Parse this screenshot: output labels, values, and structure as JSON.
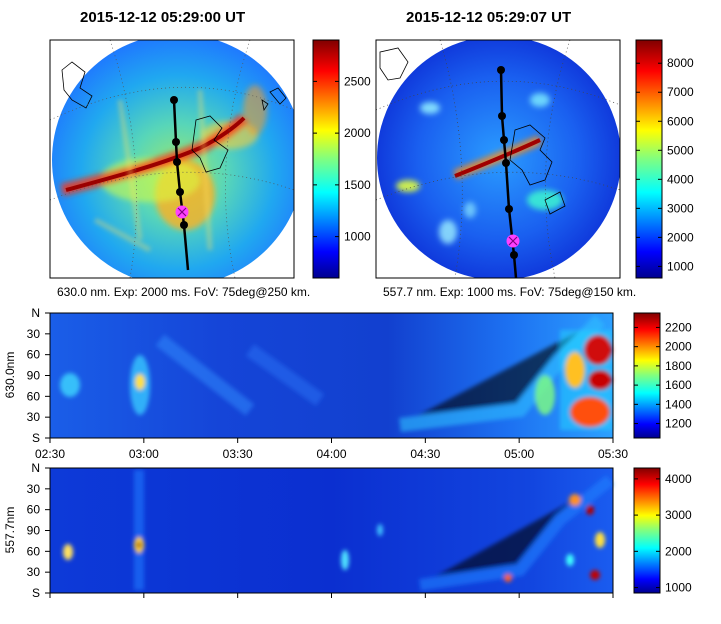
{
  "panels": {
    "left": {
      "title": "2015-12-12 05:29:00 UT",
      "caption": "630.0 nm. Exp: 2000 ms. FoV: 75deg@250 km.",
      "colorbar": {
        "ticks": [
          1000,
          1500,
          2000,
          2500
        ],
        "range": [
          600,
          2900
        ]
      }
    },
    "right": {
      "title": "2015-12-12 05:29:07 UT",
      "caption": "557.7 nm. Exp: 1000 ms. FoV: 75deg@150 km.",
      "colorbar": {
        "ticks": [
          1000,
          2000,
          3000,
          4000,
          5000,
          6000,
          7000,
          8000
        ],
        "range": [
          600,
          8800
        ]
      }
    }
  },
  "keogram_630": {
    "ylabel": "630.0nm",
    "yticks": [
      "N",
      "30",
      "60",
      "90",
      "60",
      "30",
      "S"
    ],
    "xticks": [
      "02:30",
      "03:00",
      "03:30",
      "04:00",
      "04:30",
      "05:00",
      "05:30"
    ],
    "colorbar": {
      "ticks": [
        1200,
        1400,
        1600,
        1800,
        2000,
        2200
      ],
      "range": [
        1050,
        2350
      ]
    }
  },
  "keogram_557": {
    "ylabel": "557.7nm",
    "yticks": [
      "N",
      "30",
      "60",
      "90",
      "60",
      "30",
      "S"
    ],
    "colorbar": {
      "ticks": [
        1000,
        2000,
        3000,
        4000
      ],
      "range": [
        850,
        4300
      ]
    }
  },
  "chart_data": [
    {
      "type": "heatmap",
      "title": "2015-12-12 05:29:00 UT",
      "xlabel": "",
      "ylabel": "",
      "colorbar_ticks": [
        1000,
        1500,
        2000,
        2500
      ],
      "zlim": [
        600,
        2900
      ]
    },
    {
      "type": "heatmap",
      "title": "2015-12-12 05:29:07 UT",
      "xlabel": "",
      "ylabel": "",
      "colorbar_ticks": [
        1000,
        2000,
        3000,
        4000,
        5000,
        6000,
        7000,
        8000
      ],
      "zlim": [
        600,
        8800
      ]
    },
    {
      "type": "heatmap",
      "ylabel": "630.0nm",
      "x_ticks": [
        "02:30",
        "03:00",
        "03:30",
        "04:00",
        "04:30",
        "05:00",
        "05:30"
      ],
      "xlim": [
        "02:30",
        "05:30"
      ],
      "y_ticks": [
        "N",
        "30",
        "60",
        "90",
        "60",
        "30",
        "S"
      ],
      "colorbar_ticks": [
        1200,
        1400,
        1600,
        1800,
        2000,
        2200
      ],
      "zlim": [
        1050,
        2350
      ]
    },
    {
      "type": "heatmap",
      "ylabel": "557.7nm",
      "xlim": [
        "02:30",
        "05:30"
      ],
      "y_ticks": [
        "N",
        "30",
        "60",
        "90",
        "60",
        "30",
        "S"
      ],
      "colorbar_ticks": [
        1000,
        2000,
        3000,
        4000
      ],
      "zlim": [
        850,
        4300
      ]
    }
  ]
}
